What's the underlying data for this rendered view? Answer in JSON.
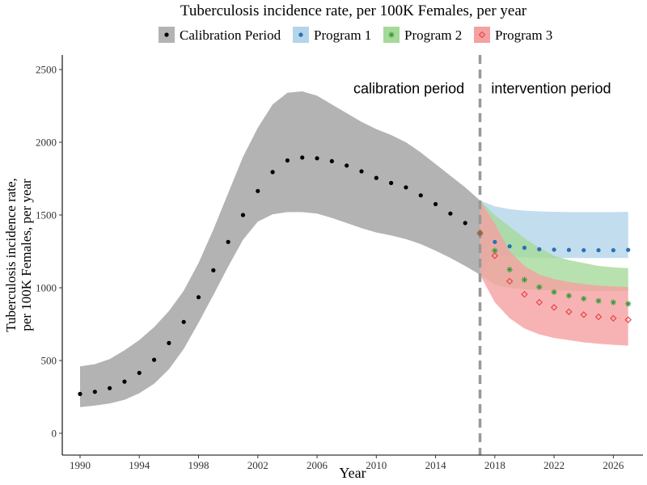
{
  "chart_data": {
    "type": "scatter",
    "title": "Tuberculosis incidence rate, per 100K Females, per year",
    "xlabel": "Year",
    "ylabel_lines": [
      "Tuberculosis incidence rate,",
      "per 100K Females, per year"
    ],
    "xlim": [
      1988.8,
      2028.0
    ],
    "ylim": [
      -150,
      2600
    ],
    "x_ticks": [
      1990,
      1994,
      1998,
      2002,
      2006,
      2010,
      2014,
      2018,
      2022,
      2026
    ],
    "y_ticks": [
      0,
      500,
      1000,
      1500,
      2000,
      2500
    ],
    "grid": false,
    "legend_position": "top",
    "annotations": [
      {
        "text": "calibration period",
        "x": 2012.2,
        "y": 2370
      },
      {
        "text": "intervention period",
        "x": 2021.8,
        "y": 2370
      }
    ],
    "reference_line": {
      "x": 2017,
      "style": "dashed",
      "color": "#999999"
    },
    "series": [
      {
        "name": "Calibration Period",
        "marker": "dot",
        "color": "#000000",
        "band_color": "#b3b3b3",
        "x": [
          1990,
          1991,
          1992,
          1993,
          1994,
          1995,
          1996,
          1997,
          1998,
          1999,
          2000,
          2001,
          2002,
          2003,
          2004,
          2005,
          2006,
          2007,
          2008,
          2009,
          2010,
          2011,
          2012,
          2013,
          2014,
          2015,
          2016,
          2017
        ],
        "y": [
          270,
          285,
          310,
          355,
          415,
          505,
          620,
          765,
          935,
          1120,
          1315,
          1500,
          1665,
          1795,
          1875,
          1895,
          1890,
          1870,
          1840,
          1800,
          1755,
          1720,
          1690,
          1635,
          1575,
          1510,
          1445,
          1375
        ],
        "band_upper": [
          460,
          475,
          510,
          570,
          640,
          730,
          840,
          980,
          1170,
          1400,
          1650,
          1900,
          2100,
          2260,
          2340,
          2350,
          2320,
          2260,
          2200,
          2140,
          2090,
          2050,
          2000,
          1930,
          1850,
          1770,
          1690,
          1600
        ],
        "band_lower": [
          180,
          190,
          205,
          230,
          275,
          340,
          440,
          580,
          760,
          950,
          1145,
          1330,
          1455,
          1505,
          1520,
          1520,
          1510,
          1480,
          1445,
          1410,
          1380,
          1360,
          1335,
          1300,
          1255,
          1205,
          1150,
          1090
        ]
      },
      {
        "name": "Program 1",
        "marker": "dot",
        "color": "#2c6fb5",
        "band_color": "#b3d5ea",
        "x": [
          2017,
          2018,
          2019,
          2020,
          2021,
          2022,
          2023,
          2024,
          2025,
          2026,
          2027
        ],
        "y": [
          1375,
          1315,
          1285,
          1275,
          1265,
          1262,
          1260,
          1258,
          1258,
          1258,
          1260
        ],
        "band_upper": [
          1600,
          1560,
          1540,
          1530,
          1525,
          1522,
          1520,
          1520,
          1520,
          1520,
          1522
        ],
        "band_lower": [
          1090,
          1240,
          1215,
          1210,
          1205,
          1205,
          1205,
          1204,
          1204,
          1205,
          1205
        ]
      },
      {
        "name": "Program 2",
        "marker": "asterisk",
        "color": "#3a9a3a",
        "band_color": "#a5d99a",
        "x": [
          2017,
          2018,
          2019,
          2020,
          2021,
          2022,
          2023,
          2024,
          2025,
          2026,
          2027
        ],
        "y": [
          1375,
          1255,
          1125,
          1055,
          1005,
          970,
          945,
          925,
          910,
          900,
          890
        ],
        "band_upper": [
          1600,
          1500,
          1420,
          1340,
          1275,
          1220,
          1190,
          1170,
          1150,
          1140,
          1135
        ],
        "band_lower": [
          1090,
          1020,
          1000,
          990,
          985,
          982,
          980,
          978,
          978,
          978,
          978
        ]
      },
      {
        "name": "Program 3",
        "marker": "diamond",
        "color": "#e8454a",
        "band_color": "#f5a0a1",
        "x": [
          2017,
          2018,
          2019,
          2020,
          2021,
          2022,
          2023,
          2024,
          2025,
          2026,
          2027
        ],
        "y": [
          1375,
          1220,
          1045,
          955,
          900,
          865,
          835,
          815,
          800,
          790,
          780
        ],
        "band_upper": [
          1600,
          1440,
          1250,
          1150,
          1090,
          1060,
          1040,
          1025,
          1015,
          1010,
          1005
        ],
        "band_lower": [
          1090,
          900,
          790,
          720,
          680,
          655,
          640,
          625,
          615,
          608,
          602
        ]
      }
    ]
  }
}
